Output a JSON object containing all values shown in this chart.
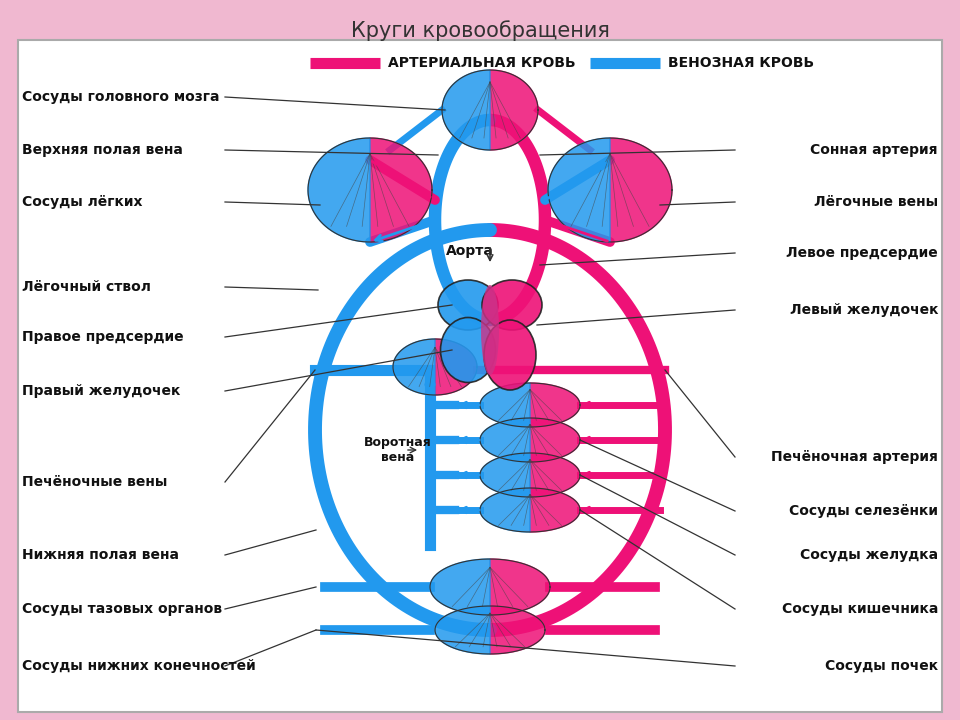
{
  "title": "Круги кровообращения",
  "bg_color": "#f0b8d0",
  "box_bg": "#ffffff",
  "arterial_color": "#ee1177",
  "venous_color": "#2299ee",
  "legend_arterial": "АРТЕРИАЛЬНАЯ КРОВЬ",
  "legend_venous": "ВЕНОЗНАЯ КРОВЬ",
  "left_labels": [
    [
      "Сосуды головного мозга",
      0.865
    ],
    [
      "Верхняя полая вена",
      0.79
    ],
    [
      "Сосуды лёгких",
      0.72
    ],
    [
      "Лёгочный ствол",
      0.6
    ],
    [
      "Правое предсердие",
      0.53
    ],
    [
      "Правый желудочек",
      0.455
    ],
    [
      "Печёночные вены",
      0.33
    ],
    [
      "Нижняя полая вена",
      0.23
    ],
    [
      "Сосуды тазовых органов",
      0.155
    ],
    [
      "Сосуды нижних конечностей",
      0.075
    ]
  ],
  "right_labels": [
    [
      "Сонная артерия",
      0.79
    ],
    [
      "Лёгочные вены",
      0.72
    ],
    [
      "Левое предсердие",
      0.65
    ],
    [
      "Левый желудочек",
      0.57
    ],
    [
      "Печёночная артерия",
      0.365
    ],
    [
      "Сосуды селезёнки",
      0.29
    ],
    [
      "Сосуды желудка",
      0.23
    ],
    [
      "Сосуды кишечника",
      0.155
    ],
    [
      "Сосуды почек",
      0.075
    ]
  ]
}
